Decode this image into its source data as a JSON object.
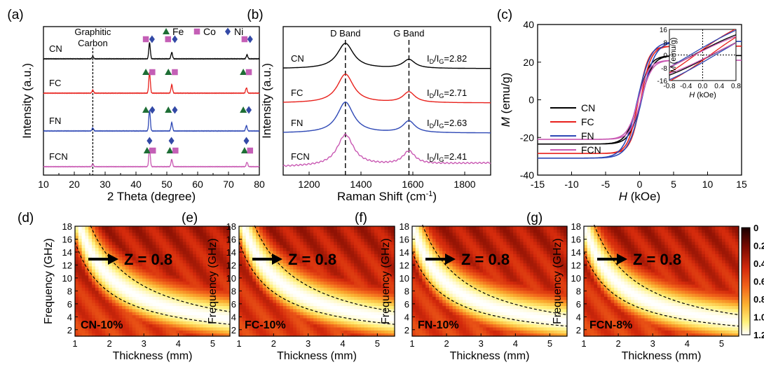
{
  "colors": {
    "CN": "#000000",
    "FC": "#e8211c",
    "FN": "#2e48b5",
    "FCN": "#c959b3",
    "Fe": "#1e6e35",
    "Co": "#c45fb6",
    "Ni": "#3349a6"
  },
  "chart_data": [
    {
      "panel": "(a)",
      "type": "line",
      "title": "",
      "xlabel": "2 Theta (degree)",
      "ylabel": "Intensity (a.u.)",
      "xlim": [
        10,
        80
      ],
      "xticks": [
        10,
        20,
        30,
        40,
        50,
        60,
        70,
        80
      ],
      "series": [
        {
          "name": "CN",
          "peaks": [
            {
              "x": 26,
              "h": 0.15
            },
            {
              "x": 44.4,
              "h": 1.0
            },
            {
              "x": 51.6,
              "h": 0.4
            },
            {
              "x": 76,
              "h": 0.25
            }
          ]
        },
        {
          "name": "FC",
          "peaks": [
            {
              "x": 26,
              "h": 0.15
            },
            {
              "x": 44.4,
              "h": 1.0
            },
            {
              "x": 51.6,
              "h": 0.4
            },
            {
              "x": 75.8,
              "h": 0.25
            }
          ]
        },
        {
          "name": "FN",
          "peaks": [
            {
              "x": 26,
              "h": 0.15
            },
            {
              "x": 44.4,
              "h": 1.0
            },
            {
              "x": 51.6,
              "h": 0.4
            },
            {
              "x": 75.8,
              "h": 0.25
            }
          ]
        },
        {
          "name": "FCN",
          "peaks": [
            {
              "x": 26,
              "h": 0.15
            },
            {
              "x": 44.4,
              "h": 1.0
            },
            {
              "x": 51.6,
              "h": 0.4
            },
            {
              "x": 76,
              "h": 0.25
            }
          ]
        }
      ],
      "annotations": {
        "graphitic_line": "Graphitic",
        "graphitic_line2": "Carbon",
        "graphitic_x": 26,
        "legend": [
          {
            "symbol": "triangle",
            "label": "Fe"
          },
          {
            "symbol": "square",
            "label": "Co"
          },
          {
            "symbol": "diamond",
            "label": "Ni"
          }
        ]
      }
    },
    {
      "panel": "(b)",
      "type": "line",
      "xlabel": "Raman Shift (cm",
      "xlabel_sup": "-1",
      "xlabel_end": ")",
      "ylabel": "Intensity (a.u.)",
      "xlim": [
        1100,
        1900
      ],
      "xticks": [
        1200,
        1400,
        1600,
        1800
      ],
      "bands": [
        {
          "label": "D Band",
          "x": 1340
        },
        {
          "label": "G Band",
          "x": 1585
        }
      ],
      "series": [
        {
          "name": "CN",
          "ratio": "2.82",
          "d": 1.0,
          "g": 0.35
        },
        {
          "name": "FC",
          "ratio": "2.71",
          "d": 1.0,
          "g": 0.37
        },
        {
          "name": "FN",
          "ratio": "2.63",
          "d": 1.0,
          "g": 0.38
        },
        {
          "name": "FCN",
          "ratio": "2.41",
          "d": 1.0,
          "g": 0.42
        }
      ],
      "ratio_prefix": "I",
      "ratio_sub1": "D",
      "ratio_mid": "/I",
      "ratio_sub2": "G",
      "ratio_eq": "="
    },
    {
      "panel": "(c)",
      "type": "line",
      "xlabel_italic": "H",
      "xlabel_rest": " (kOe)",
      "ylabel_italic": "M",
      "ylabel_rest": " (emu/g)",
      "xlim": [
        -15,
        15
      ],
      "ylim": [
        -40,
        40
      ],
      "xticks": [
        -15,
        -10,
        -5,
        0,
        5,
        10,
        15
      ],
      "yticks": [
        -40,
        -20,
        0,
        20,
        40
      ],
      "series": [
        {
          "name": "CN",
          "ms": 23.5,
          "hc": 0.22,
          "a": 1.7
        },
        {
          "name": "FC",
          "ms": 28.5,
          "hc": 0.18,
          "a": 1.5
        },
        {
          "name": "FN",
          "ms": 31.0,
          "hc": 0.3,
          "a": 2.0
        },
        {
          "name": "FCN",
          "ms": 21.0,
          "hc": 0.2,
          "a": 1.6
        }
      ],
      "inset": {
        "xlim": [
          -0.8,
          0.8
        ],
        "ylim": [
          -16,
          16
        ],
        "xticks": [
          "-0.8",
          "-0.4",
          "0.0",
          "0.4",
          "0.8"
        ],
        "yticks": [
          "16",
          "8",
          "0",
          "-8",
          "-16"
        ],
        "xlabel_italic": "H",
        "xlabel_rest": " (kOe)",
        "ylabel_italic": "M",
        "ylabel_rest": " (emu/g)"
      }
    },
    {
      "type": "heatmap",
      "xlabel": "Thickness (mm)",
      "ylabel": "Frequency (GHz)",
      "xlim": [
        1,
        5.5
      ],
      "ylim": [
        1,
        18
      ],
      "xticks": [
        "1",
        "2",
        "3",
        "4",
        "5"
      ],
      "yticks": [
        "2",
        "4",
        "6",
        "8",
        "10",
        "12",
        "14",
        "16",
        "18"
      ],
      "annotation": "Z = 0.8",
      "panels": [
        {
          "panel": "(d)",
          "sample": "CN-10%",
          "k": 20.5
        },
        {
          "panel": "(e)",
          "sample": "FC-10%",
          "k": 20.5
        },
        {
          "panel": "(f)",
          "sample": "FN-10%",
          "k": 18.5
        },
        {
          "panel": "(g)",
          "sample": "FCN-8%",
          "k": 18.5
        }
      ],
      "colorbar": {
        "labels": [
          "0",
          "0.2",
          "0.4",
          "0.6",
          "0.8",
          "1.0",
          "1.2"
        ]
      }
    }
  ]
}
